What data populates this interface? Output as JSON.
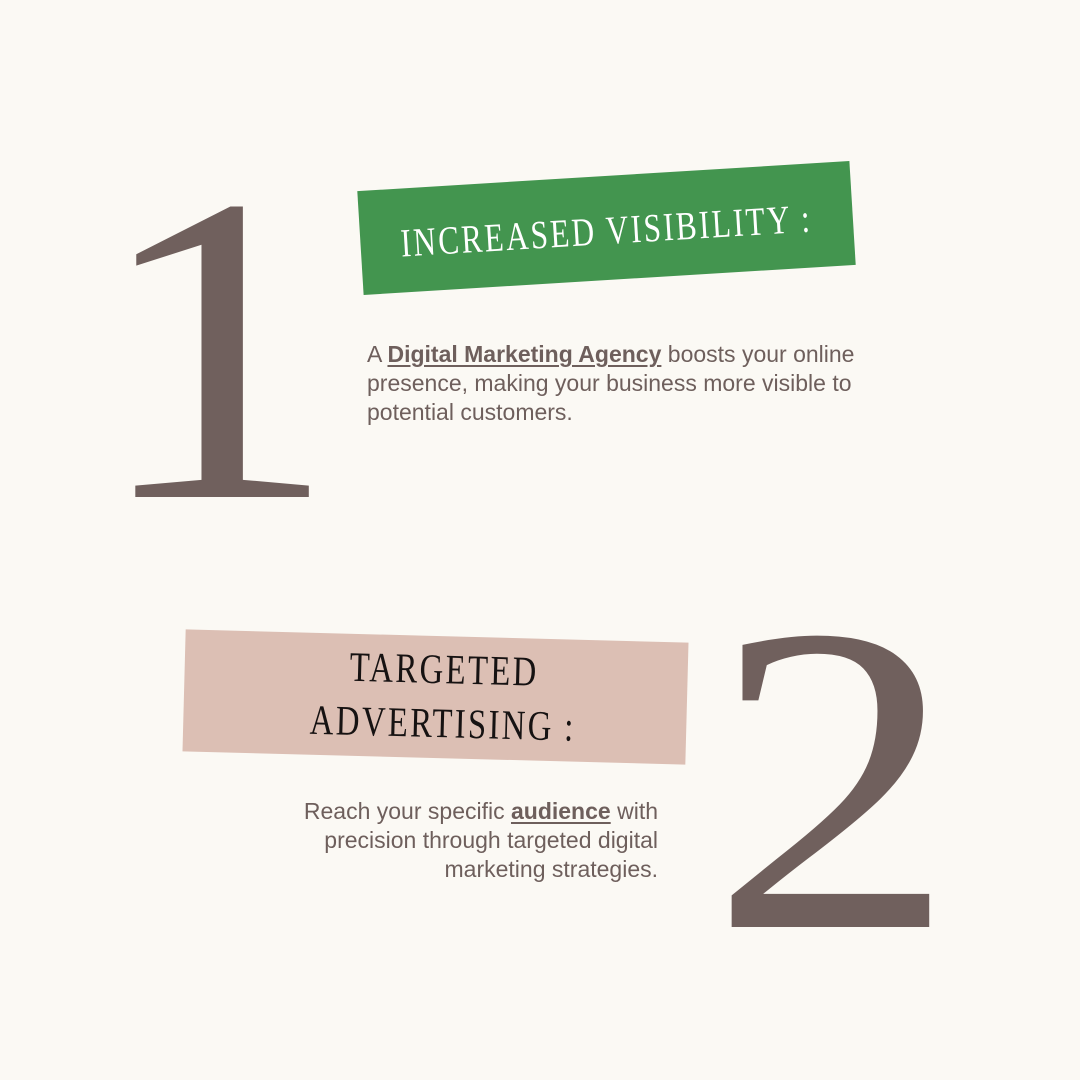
{
  "item1": {
    "numeral": "1",
    "heading": "INCREASED VISIBILITY :",
    "text_before": "A ",
    "emphasis": "Digital Marketing Agency",
    "text_after": " boosts your online presence, making your business more visible to potential customers.",
    "banner_color": "#43954f"
  },
  "item2": {
    "numeral": "2",
    "heading_line1": "TARGETED",
    "heading_line2": "ADVERTISING :",
    "text_before": "Reach your specific ",
    "emphasis": "audience",
    "text_after": " with precision through targeted digital marketing strategies.",
    "banner_color": "#dcbfb4"
  },
  "colors": {
    "background": "#fbf9f4",
    "numeral": "#70605d",
    "body_text": "#6e5f5c"
  }
}
